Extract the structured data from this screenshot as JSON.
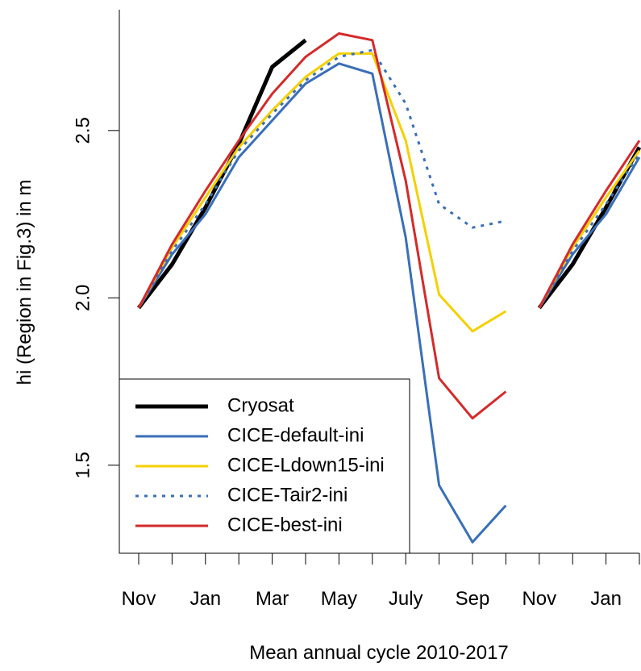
{
  "chart_data": {
    "type": "line",
    "x_label": "Mean annual cycle 2010-2017",
    "y_label": "hi (Region in Fig.3) in m",
    "categories": [
      "Nov",
      null,
      "Jan",
      null,
      "Mar",
      null,
      "May",
      null,
      "July",
      null,
      "Sep",
      null,
      "Nov",
      null,
      "Jan",
      null
    ],
    "series": [
      {
        "name": "Cryosat",
        "color": "#000000",
        "values": [
          1.97,
          2.1,
          2.27,
          2.46,
          2.69,
          2.77,
          null,
          null,
          null,
          null,
          null,
          null,
          1.97,
          2.1,
          2.27,
          2.45
        ]
      },
      {
        "name": "CICE-default-ini",
        "color": "#3a6fb8",
        "values": [
          1.97,
          2.13,
          2.25,
          2.42,
          2.53,
          2.64,
          2.7,
          2.67,
          2.18,
          1.44,
          1.27,
          1.38,
          1.97,
          2.13,
          2.25,
          2.42
        ]
      },
      {
        "name": "CICE-Ldown15-ini",
        "color": "#f5d000",
        "values": [
          1.97,
          2.15,
          2.3,
          2.45,
          2.56,
          2.66,
          2.73,
          2.73,
          2.47,
          2.01,
          1.9,
          1.96,
          1.97,
          2.15,
          2.3,
          2.44
        ]
      },
      {
        "name": "CICE-Tair2-ini",
        "color": "#3a6fb8",
        "dashed": true,
        "values": [
          1.97,
          2.14,
          2.28,
          2.44,
          2.55,
          2.65,
          2.72,
          2.74,
          2.58,
          2.28,
          2.21,
          2.23,
          1.97,
          2.14,
          2.28,
          2.43
        ]
      },
      {
        "name": "CICE-best-ini",
        "color": "#d42a2a",
        "values": [
          1.97,
          2.16,
          2.32,
          2.47,
          2.61,
          2.72,
          2.79,
          2.77,
          2.35,
          1.76,
          1.64,
          1.72,
          1.97,
          2.16,
          2.32,
          2.47
        ]
      }
    ],
    "ylim": [
      1.237,
      2.861
    ],
    "yticks": [
      1.5,
      {
        "value": 2,
        "label": "2.0"
      },
      2.5
    ],
    "legend": "bottom-left"
  }
}
